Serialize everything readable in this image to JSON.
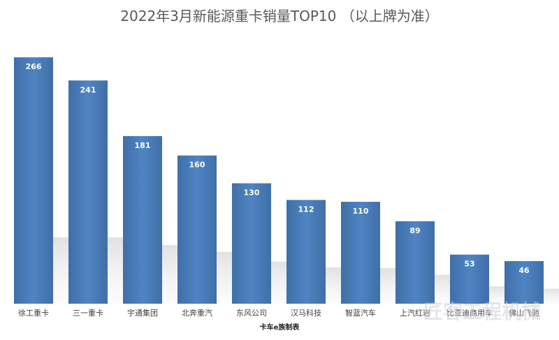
{
  "chart_data": {
    "type": "bar",
    "title": "2022年3月新能源重卡销量TOP10 （以上牌为准）",
    "categories": [
      "徐工重卡",
      "三一重卡",
      "宇通集团",
      "北奔重汽",
      "东风公司",
      "汉马科技",
      "智蓝汽车",
      "上汽红岩",
      "比亚迪商用车",
      "佛山飞驰"
    ],
    "values": [
      266,
      241,
      181,
      160,
      130,
      112,
      110,
      89,
      53,
      46
    ],
    "xlabel": "",
    "ylabel": "",
    "ylim": [
      0,
      300
    ],
    "grid": false,
    "legend": "none",
    "bar_color": "#4a7ebb",
    "source_note": "卡车e族制表"
  },
  "watermark": "匠客工程机械"
}
